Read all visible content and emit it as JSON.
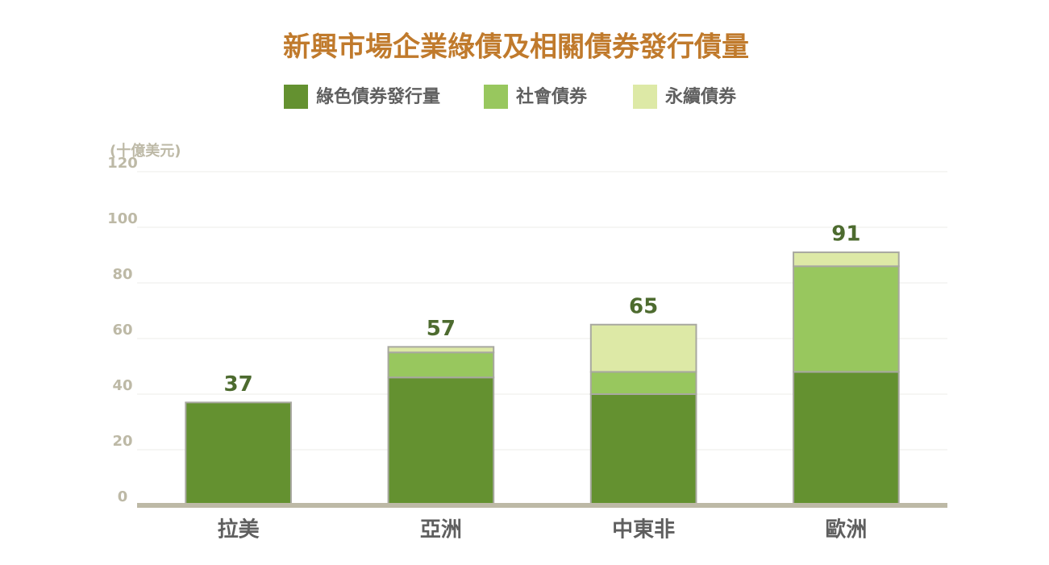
{
  "chart_data": {
    "type": "stacked_bar",
    "title": "新興市場企業綠債及相關債券發行債量",
    "unit_label": "(十億美元)",
    "categories": [
      "拉美",
      "亞洲",
      "中東非",
      "歐洲"
    ],
    "series": [
      {
        "name": "綠色債券發行量",
        "color": "#649130",
        "values": [
          37,
          46,
          40,
          48
        ]
      },
      {
        "name": "社會債券",
        "color": "#98c75e",
        "values": [
          0,
          9,
          8,
          38
        ]
      },
      {
        "name": "永續債券",
        "color": "#dde9a6",
        "values": [
          0,
          2,
          17,
          5
        ]
      }
    ],
    "totals": [
      37,
      57,
      65,
      91
    ],
    "ylim": [
      0,
      120
    ],
    "yticks": [
      0,
      20,
      40,
      60,
      80,
      100,
      120
    ],
    "grid": true,
    "legend": "top"
  }
}
